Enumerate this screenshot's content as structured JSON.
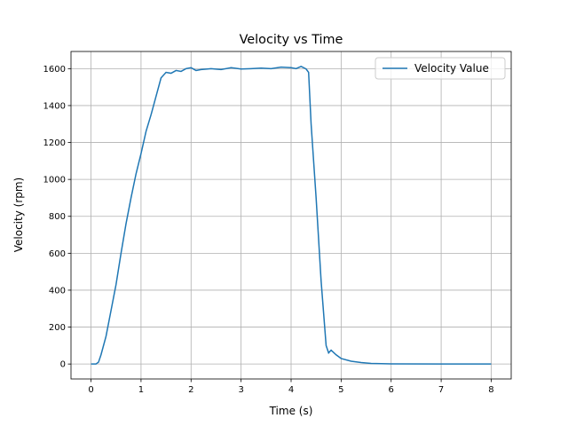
{
  "chart_data": {
    "type": "line",
    "title": "Velocity vs Time",
    "xlabel": "Time (s)",
    "ylabel": "Velocity (rpm)",
    "x": [
      0,
      0.1,
      0.15,
      0.2,
      0.3,
      0.4,
      0.5,
      0.6,
      0.7,
      0.8,
      0.9,
      1.0,
      1.1,
      1.2,
      1.3,
      1.4,
      1.5,
      1.6,
      1.7,
      1.8,
      1.9,
      2.0,
      2.1,
      2.2,
      2.4,
      2.6,
      2.8,
      3.0,
      3.2,
      3.4,
      3.6,
      3.8,
      4.0,
      4.1,
      4.2,
      4.3,
      4.35,
      4.4,
      4.5,
      4.6,
      4.7,
      4.75,
      4.8,
      4.9,
      5.0,
      5.2,
      5.4,
      5.6,
      6.0,
      7.0,
      8.0
    ],
    "series": [
      {
        "name": "Velocity Value",
        "color": "#1f77b4",
        "values": [
          0,
          0,
          10,
          50,
          150,
          290,
          430,
          600,
          760,
          900,
          1030,
          1140,
          1260,
          1350,
          1450,
          1550,
          1580,
          1575,
          1590,
          1585,
          1600,
          1605,
          1590,
          1595,
          1600,
          1595,
          1605,
          1598,
          1600,
          1603,
          1600,
          1608,
          1605,
          1600,
          1612,
          1598,
          1580,
          1300,
          900,
          450,
          100,
          60,
          75,
          50,
          30,
          15,
          8,
          3,
          1,
          0,
          0
        ]
      }
    ],
    "xlim": [
      -0.4,
      8.4
    ],
    "xticks": [
      0,
      1,
      2,
      3,
      4,
      5,
      6,
      7,
      8
    ],
    "ylim": [
      -81,
      1693
    ],
    "yticks": [
      0,
      200,
      400,
      600,
      800,
      1000,
      1200,
      1400,
      1600
    ],
    "grid": true,
    "legend": "upper right"
  }
}
